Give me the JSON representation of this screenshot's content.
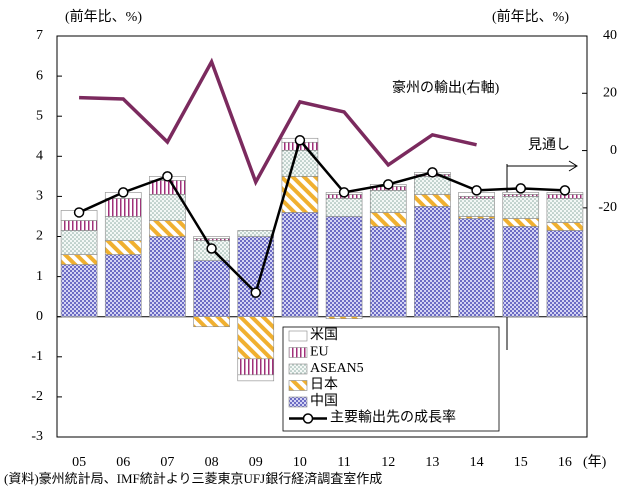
{
  "chart_data": {
    "type": "bar",
    "y_axis_label": "(前年比、%)",
    "y2_axis_label": "(前年比、%)",
    "x_axis_label": "(年)",
    "source": "(資料)豪州統計局、IMF統計より三菱東京UFJ銀行経済調査室作成",
    "annotation_forecast": "見通し",
    "categories": [
      "05",
      "06",
      "07",
      "08",
      "09",
      "10",
      "11",
      "12",
      "13",
      "14",
      "15",
      "16"
    ],
    "series": [
      {
        "name": "中国",
        "color": "#4b4bb4",
        "values": [
          1.3,
          1.55,
          2.0,
          1.4,
          2.0,
          2.6,
          2.5,
          2.25,
          2.75,
          2.45,
          2.25,
          2.15
        ]
      },
      {
        "name": "日本",
        "color": "#f0b030",
        "values": [
          0.25,
          0.35,
          0.4,
          -0.25,
          -1.05,
          0.9,
          -0.05,
          0.35,
          0.3,
          0.05,
          0.2,
          0.2
        ]
      },
      {
        "name": "ASEAN5",
        "color": "#8aa8a0",
        "values": [
          0.6,
          0.6,
          0.65,
          0.5,
          0.15,
          0.65,
          0.45,
          0.55,
          0.45,
          0.45,
          0.55,
          0.6
        ]
      },
      {
        "name": "EU",
        "color": "#a0307a",
        "values": [
          0.25,
          0.45,
          0.35,
          0.05,
          -0.4,
          0.2,
          0.1,
          0.1,
          0.05,
          0.05,
          0.05,
          0.1
        ]
      },
      {
        "name": "米国",
        "color": "#ffffff",
        "values": [
          0.25,
          0.15,
          0.1,
          0.05,
          -0.15,
          0.1,
          0.05,
          0.05,
          0.05,
          0.1,
          0.05,
          0.05
        ]
      }
    ],
    "line_series": [
      {
        "name": "主要輸出先の成長率",
        "color": "#000000",
        "axis": "y",
        "markers": true,
        "values": [
          2.6,
          3.1,
          3.5,
          1.7,
          0.6,
          4.4,
          3.1,
          3.3,
          3.6,
          3.15,
          3.2,
          3.15
        ]
      },
      {
        "name": "豪州の輸出(右軸)",
        "color": "#7b2a5e",
        "axis": "y2",
        "markers": false,
        "values": [
          18.5,
          18,
          3,
          31,
          -11,
          17,
          13.5,
          -5,
          5.5,
          2,
          null,
          null
        ]
      }
    ],
    "ylim": [
      -3,
      7
    ],
    "yticks": [
      -3,
      -2,
      -1,
      0,
      1,
      2,
      3,
      4,
      5,
      6,
      7
    ],
    "y2lim": [
      -100,
      40
    ],
    "y2ticks": [
      -20,
      0,
      20,
      40
    ]
  }
}
